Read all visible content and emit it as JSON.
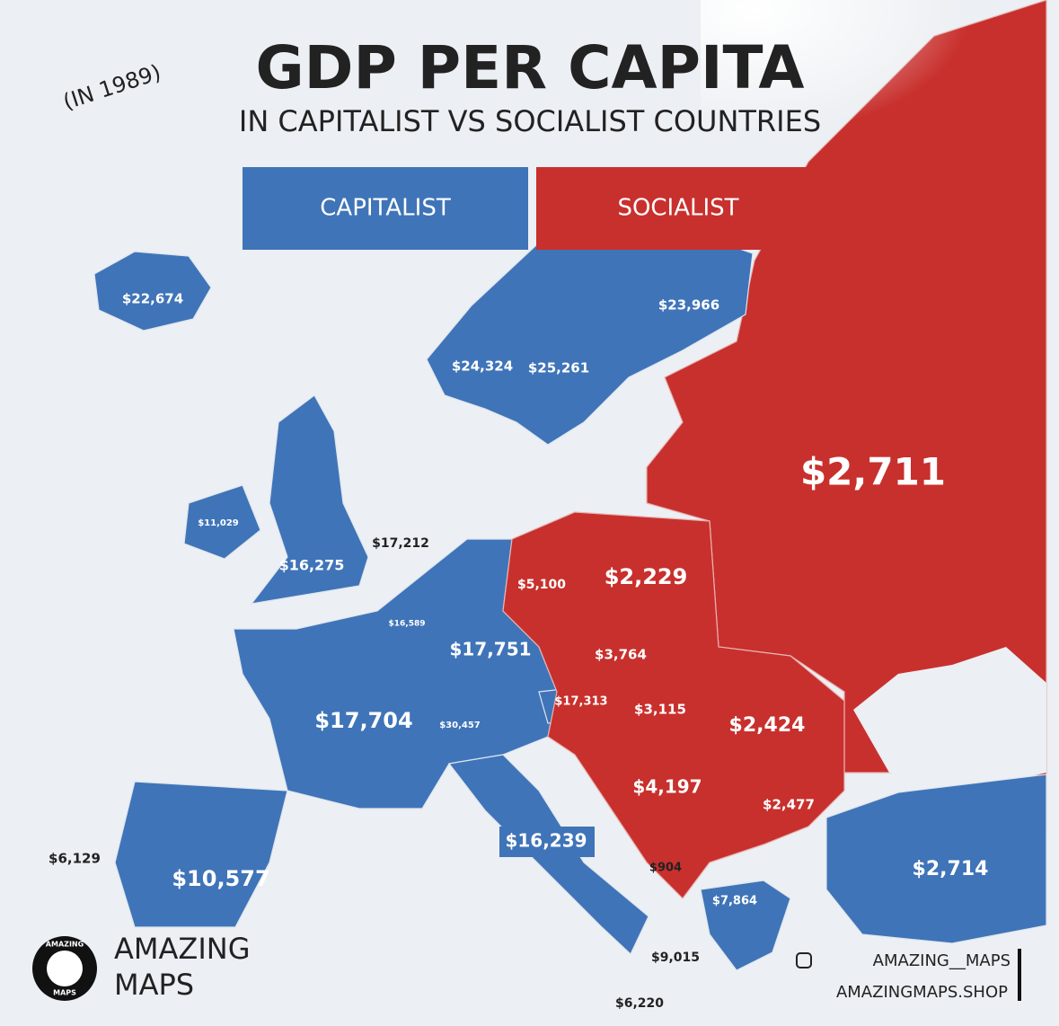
{
  "header": {
    "year": "(IN 1989)",
    "title": "GDP PER CAPITA",
    "subtitle": "IN CAPITALIST VS SOCIALIST COUNTRIES"
  },
  "legend": {
    "capitalist": "CAPITALIST",
    "socialist": "SOCIALIST"
  },
  "labels": [
    "$22,674",
    "$23,966",
    "$24,324",
    "$25,261",
    "$2,711",
    "$11,029",
    "$17,212",
    "$16,275",
    "$5,100",
    "$2,229",
    "$16,589",
    "$17,751",
    "$3,764",
    "$17,313",
    "$3,115",
    "$17,704",
    "$30,457",
    "$2,424",
    "$4,197",
    "$2,477",
    "$16,239",
    "$2,714",
    "$6,129",
    "$10,577",
    "$904",
    "$7,864",
    "$9,015",
    "$6,220"
  ],
  "branding": {
    "logo_top": "AMAZING",
    "logo_bottom": "MAPS",
    "name_line1": "AMAZING",
    "name_line2": "MAPS",
    "handle": "AMAZING__MAPS",
    "shop": "AMAZINGMAPS.SHOP"
  }
}
